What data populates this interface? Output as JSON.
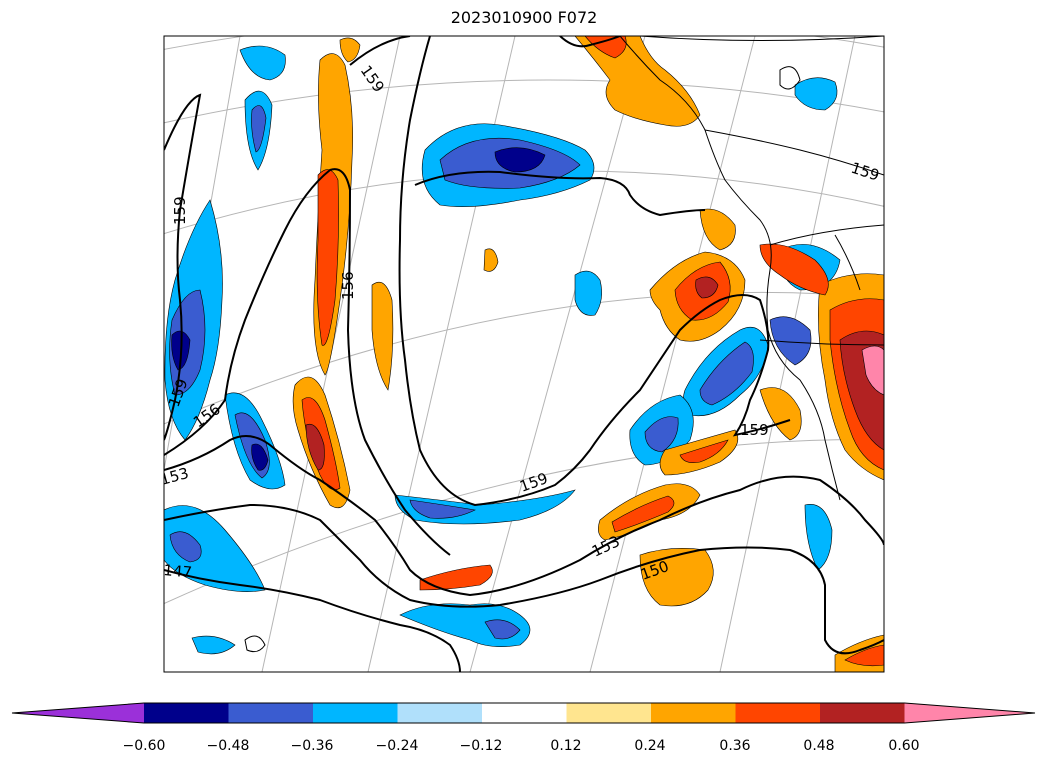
{
  "title": "2023010900 F072",
  "colors": {
    "lt_-0.60": "#9b30d9",
    "-0.60_-0.48": "#00008b",
    "-0.48_-0.36": "#3a5cd0",
    "-0.36_-0.24": "#00b6ff",
    "-0.24_-0.12": "#b0e0fb",
    "-0.12_0.12": "#ffffff",
    "0.12_0.24": "#ffe58f",
    "0.24_0.36": "#ffa500",
    "0.36_0.48": "#ff4500",
    "0.48_0.60": "#b22222",
    "gt_0.60": "#ff85aa"
  },
  "contour_labels": [
    "159",
    "159",
    "159",
    "156",
    "159",
    "156",
    "153",
    "147",
    "159",
    "153",
    "150",
    "159"
  ],
  "colorbar": {
    "ticks": [
      "−0.60",
      "−0.48",
      "−0.36",
      "−0.24",
      "−0.12",
      "0.12",
      "0.24",
      "0.36",
      "0.48",
      "0.60"
    ],
    "extend": "both"
  }
}
